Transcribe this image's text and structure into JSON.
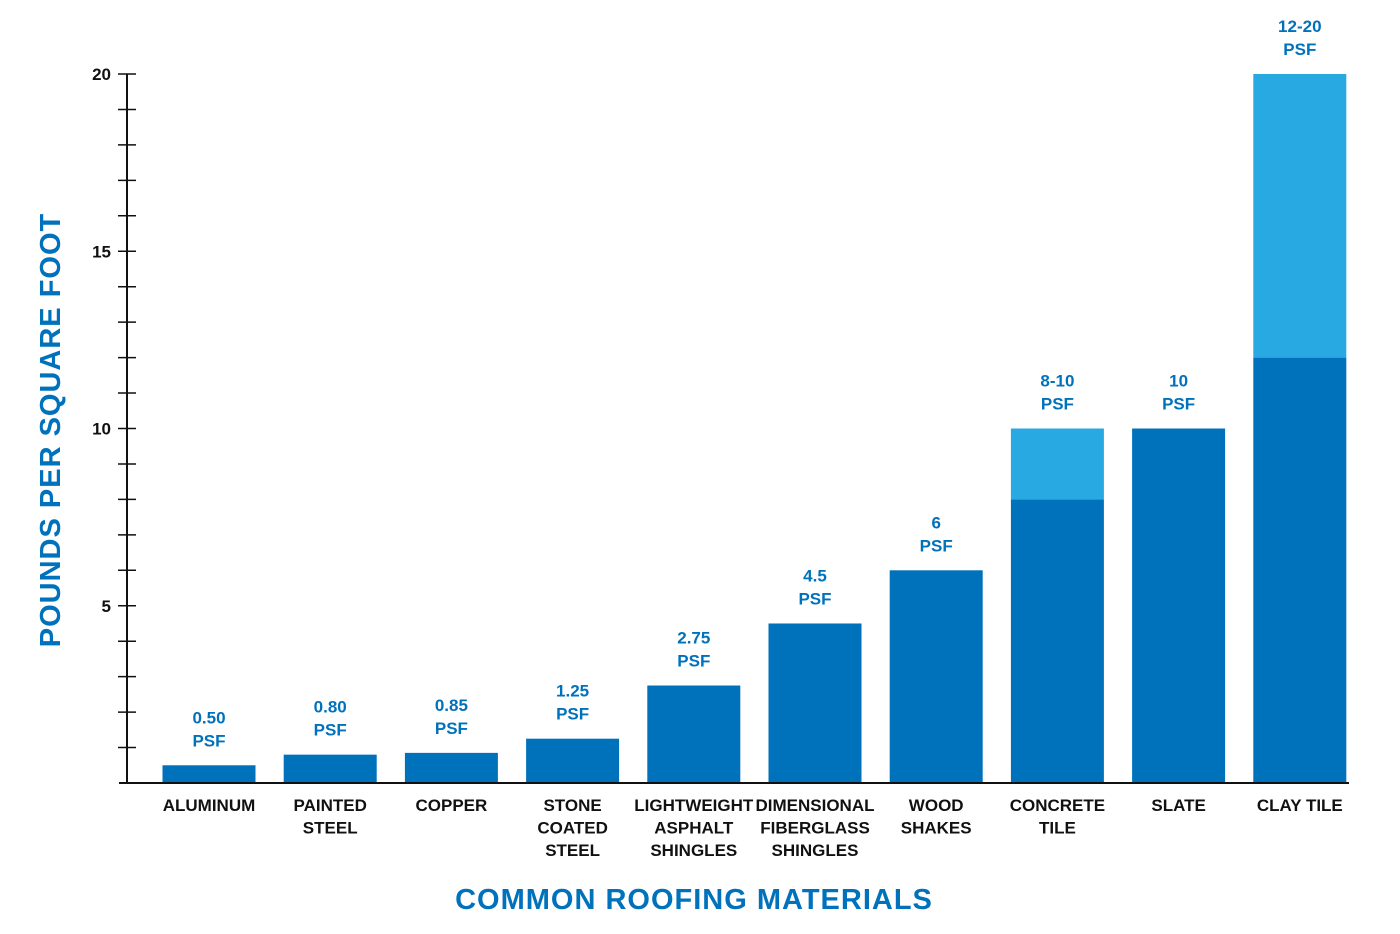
{
  "colors": {
    "primary": "#0072bc",
    "secondary": "#29a9e1",
    "axis": "#111111",
    "label": "#0072bc"
  },
  "chart_data": {
    "type": "bar",
    "stacked": true,
    "title": "",
    "xlabel": "COMMON ROOFING MATERIALS",
    "ylabel": "POUNDS PER SQUARE FOOT",
    "ylim": [
      0,
      20
    ],
    "major_ticks": [
      5,
      10,
      15,
      20
    ],
    "minor_tick_step": 1,
    "categories": [
      [
        "ALUMINUM"
      ],
      [
        "PAINTED",
        "STEEL"
      ],
      [
        "COPPER"
      ],
      [
        "STONE",
        "COATED",
        "STEEL"
      ],
      [
        "LIGHTWEIGHT",
        "ASPHALT",
        "SHINGLES"
      ],
      [
        "DIMENSIONAL",
        "FIBERGLASS",
        "SHINGLES"
      ],
      [
        "WOOD",
        "SHAKES"
      ],
      [
        "CONCRETE",
        "TILE"
      ],
      [
        "SLATE"
      ],
      [
        "CLAY TILE"
      ]
    ],
    "series": [
      {
        "name": "Minimum weight",
        "values": [
          0.5,
          0.8,
          0.85,
          1.25,
          2.75,
          4.5,
          6,
          8,
          10,
          12
        ]
      },
      {
        "name": "Weight range",
        "values": [
          0,
          0,
          0,
          0,
          0,
          0,
          0,
          2,
          0,
          8
        ]
      }
    ],
    "data_labels": [
      [
        "0.50",
        "PSF"
      ],
      [
        "0.80",
        "PSF"
      ],
      [
        "0.85",
        "PSF"
      ],
      [
        "1.25",
        "PSF"
      ],
      [
        "2.75",
        "PSF"
      ],
      [
        "4.5",
        "PSF"
      ],
      [
        "6",
        "PSF"
      ],
      [
        "8-10",
        "PSF"
      ],
      [
        "10",
        "PSF"
      ],
      [
        "12-20",
        "PSF"
      ]
    ]
  }
}
